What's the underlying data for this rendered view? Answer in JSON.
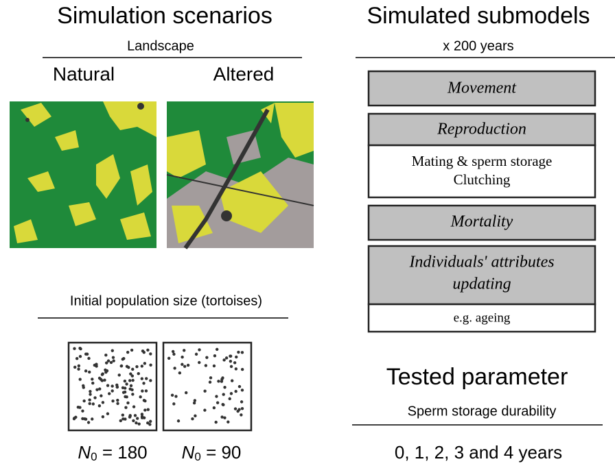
{
  "left": {
    "title": "Simulation scenarios",
    "landscape_label": "Landscape",
    "landscapes": [
      "Natural",
      "Altered"
    ],
    "population_label": "Initial population size (tortoises)",
    "populations": [
      {
        "symbol": "N",
        "subscript": "0",
        "text": " = 180"
      },
      {
        "symbol": "N",
        "subscript": "0",
        "text": " = 90"
      }
    ]
  },
  "right": {
    "title": "Simulated submodels",
    "subtitle": "x 200 years",
    "submodels": [
      {
        "name": "Movement"
      },
      {
        "name": "Reproduction",
        "details": [
          "Mating & sperm storage",
          "Clutching"
        ]
      },
      {
        "name": "Mortality"
      },
      {
        "name": [
          "Individuals' attributes",
          "updating"
        ],
        "details": [
          "e.g. ageing"
        ]
      }
    ],
    "tested_title": "Tested parameter",
    "tested_label": "Sperm storage durability",
    "tested_values": "0, 1, 2, 3 and 4 years"
  }
}
